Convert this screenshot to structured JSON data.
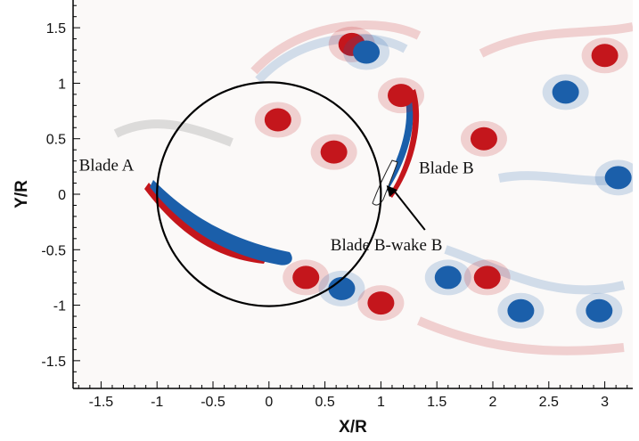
{
  "chart_data": {
    "type": "heatmap",
    "title": "",
    "xlabel": "X/R",
    "ylabel": "Y/R",
    "xlim": [
      -1.75,
      3.25
    ],
    "ylim": [
      -1.75,
      1.75
    ],
    "x_ticks": [
      "-1.5",
      "-1",
      "-0.5",
      "0",
      "0.5",
      "1",
      "1.5",
      "2",
      "2.5",
      "3"
    ],
    "y_ticks": [
      "1.5",
      "1",
      "0.5",
      "0",
      "-0.5",
      "-1",
      "-1.5"
    ],
    "colors": {
      "positive": "#c4161c",
      "negative": "#1b5faa",
      "background": "#fbf9f8"
    },
    "rotor_circle": {
      "center": [
        0,
        0
      ],
      "radius": 1
    },
    "annotations": [
      {
        "text": "Blade A",
        "x": -1.1,
        "y": 0.15
      },
      {
        "text": "Blade B",
        "x": 1.1,
        "y": 0.15
      },
      {
        "text": "Blade B-wake B",
        "x": 1.05,
        "y": 0.08,
        "label_x": 1.25,
        "label_y": -0.45
      }
    ],
    "vortices": [
      {
        "x": 0.08,
        "y": 0.67,
        "sign": 1
      },
      {
        "x": 0.58,
        "y": 0.38,
        "sign": 1
      },
      {
        "x": 0.74,
        "y": 1.35,
        "sign": 1
      },
      {
        "x": 0.87,
        "y": 1.28,
        "sign": -1
      },
      {
        "x": 1.18,
        "y": 0.89,
        "sign": 1
      },
      {
        "x": 1.92,
        "y": 0.5,
        "sign": 1
      },
      {
        "x": 2.65,
        "y": 0.92,
        "sign": -1
      },
      {
        "x": 0.33,
        "y": -0.75,
        "sign": 1
      },
      {
        "x": 0.65,
        "y": -0.85,
        "sign": -1
      },
      {
        "x": 1.0,
        "y": -0.98,
        "sign": 1
      },
      {
        "x": 1.6,
        "y": -0.75,
        "sign": -1
      },
      {
        "x": 1.95,
        "y": -0.75,
        "sign": 1
      },
      {
        "x": 2.25,
        "y": -1.05,
        "sign": -1
      },
      {
        "x": 2.95,
        "y": -1.05,
        "sign": -1
      },
      {
        "x": 3.12,
        "y": 0.15,
        "sign": -1
      },
      {
        "x": 3.0,
        "y": 1.25,
        "sign": 1
      }
    ]
  }
}
